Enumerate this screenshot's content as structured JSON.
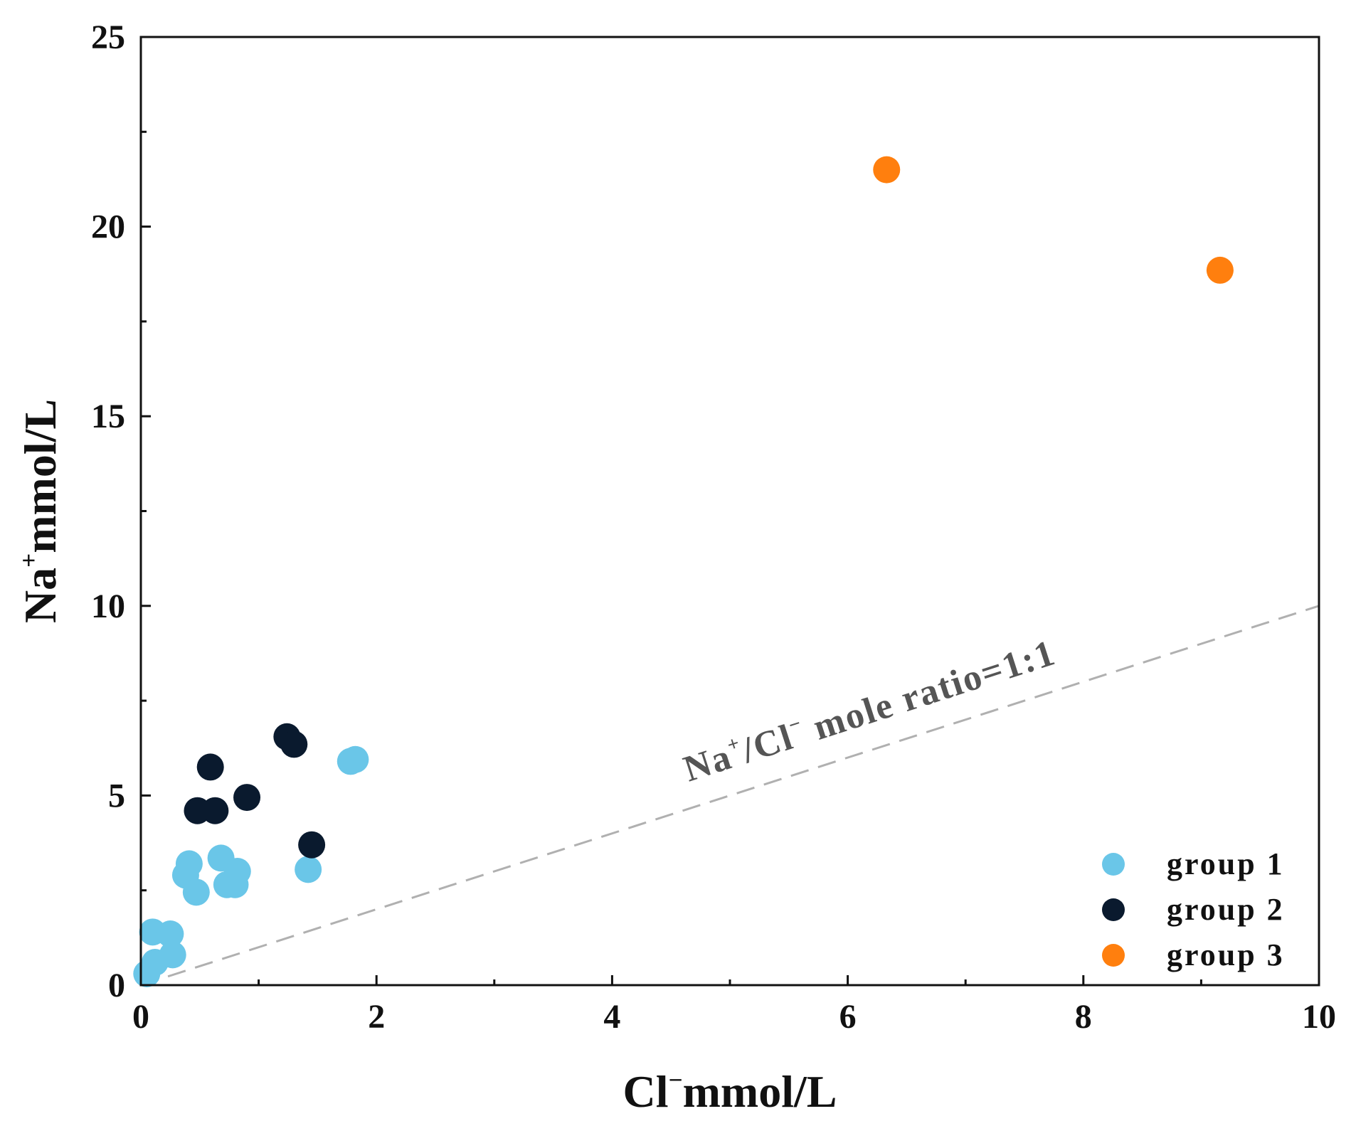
{
  "chart_data": {
    "type": "scatter",
    "xlabel": "Cl⁻mmol/L",
    "xlabel_main": "Cl",
    "xlabel_sup": "−",
    "xlabel_unit": "mmol/L",
    "ylabel": "Na⁺mmol/L",
    "ylabel_main": "Na",
    "ylabel_sup": "+",
    "ylabel_unit": "mmol/L",
    "xlim": [
      0,
      10
    ],
    "ylim": [
      0,
      25
    ],
    "x_ticks": [
      0,
      2,
      4,
      6,
      8,
      10
    ],
    "x_minor_ticks": [
      1,
      3,
      5,
      7,
      9
    ],
    "y_ticks": [
      0,
      5,
      10,
      15,
      20,
      25
    ],
    "y_minor_ticks": [
      2.5,
      7.5,
      12.5,
      17.5,
      22.5
    ],
    "grid": false,
    "legend_position": "bottom-right",
    "series": [
      {
        "name": "group 1",
        "color": "#6ac6e8",
        "points": [
          [
            0.05,
            0.3
          ],
          [
            0.12,
            0.6
          ],
          [
            0.1,
            1.4
          ],
          [
            0.25,
            1.35
          ],
          [
            0.27,
            0.8
          ],
          [
            0.38,
            2.9
          ],
          [
            0.41,
            3.2
          ],
          [
            0.47,
            2.45
          ],
          [
            0.68,
            3.35
          ],
          [
            0.73,
            2.65
          ],
          [
            0.8,
            2.65
          ],
          [
            0.82,
            3.0
          ],
          [
            1.42,
            3.05
          ],
          [
            1.78,
            5.9
          ],
          [
            1.82,
            5.95
          ]
        ]
      },
      {
        "name": "group 2",
        "color": "#0a1a2e",
        "points": [
          [
            0.48,
            4.6
          ],
          [
            0.59,
            5.75
          ],
          [
            0.63,
            4.6
          ],
          [
            0.9,
            4.95
          ],
          [
            1.24,
            6.55
          ],
          [
            1.3,
            6.35
          ],
          [
            1.45,
            3.7
          ]
        ]
      },
      {
        "name": "group 3",
        "color": "#ff7f0e",
        "points": [
          [
            6.33,
            21.5
          ],
          [
            9.16,
            18.85
          ]
        ]
      }
    ],
    "reference_line": {
      "label": "Na⁺/Cl⁻ mole ratio=1:1",
      "label_part1": "Na",
      "label_sup1": "+",
      "label_part2": "/Cl",
      "label_sup2": "−",
      "label_part3": " mole ratio=1:1",
      "from": [
        0,
        0
      ],
      "to": [
        10,
        10
      ],
      "color": "#b0b0b0",
      "style": "dashed"
    }
  }
}
